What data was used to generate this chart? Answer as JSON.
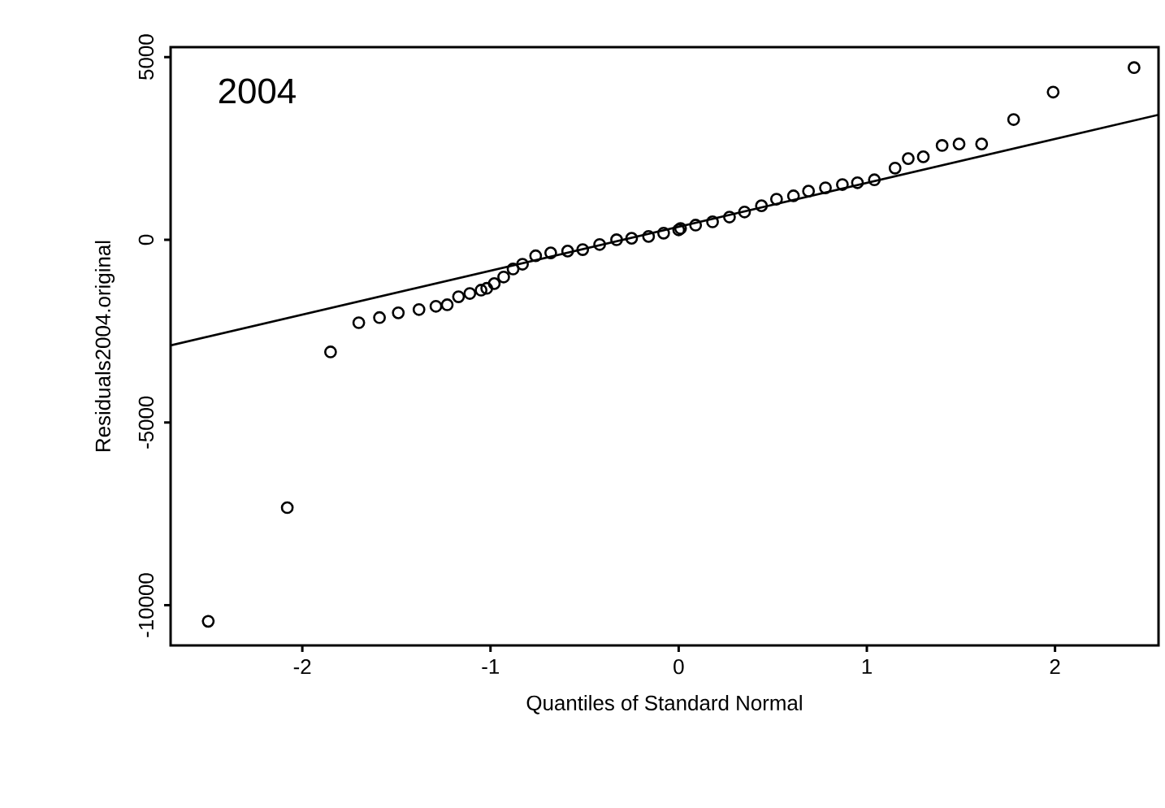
{
  "chart_data": {
    "type": "scatter",
    "xlabel": "Quantiles of Standard Normal",
    "ylabel": "Residuals2004.original",
    "annotations": [
      "2004"
    ],
    "xlim": [
      -2.7,
      2.55
    ],
    "xticks": [
      -2,
      -1,
      0,
      1,
      2
    ],
    "ylim": [
      -11100,
      5270
    ],
    "yticks": [
      -10000,
      -5000,
      0,
      5000
    ],
    "grid": false,
    "series": [
      {
        "marker": "circle",
        "color": "#000000",
        "x": [
          -2.5,
          -2.08,
          -1.85,
          -1.7,
          -1.59,
          -1.49,
          -1.38,
          -1.29,
          -1.23,
          -1.17,
          -1.11,
          -1.05,
          -1.02,
          -0.98,
          -0.93,
          -0.88,
          -0.83,
          -0.76,
          -0.68,
          -0.59,
          -0.51,
          -0.42,
          -0.33,
          -0.25,
          -0.16,
          -0.08,
          0,
          0.01,
          0.09,
          0.18,
          0.27,
          0.35,
          0.44,
          0.52,
          0.61,
          0.69,
          0.78,
          0.87,
          0.95,
          1.04,
          1.15,
          1.22,
          1.3,
          1.4,
          1.49,
          1.61,
          1.78,
          1.99,
          2.42
        ],
        "values": [
          -10440,
          -7330,
          -3070,
          -2270,
          -2130,
          -2000,
          -1910,
          -1820,
          -1780,
          -1560,
          -1470,
          -1380,
          -1330,
          -1200,
          -1020,
          -800,
          -670,
          -440,
          -360,
          -310,
          -270,
          -130,
          0,
          40,
          90,
          180,
          270,
          310,
          400,
          490,
          620,
          760,
          930,
          1110,
          1200,
          1330,
          1420,
          1510,
          1560,
          1640,
          1960,
          2220,
          2270,
          2580,
          2620,
          2620,
          3290,
          4040,
          4710
        ]
      },
      {
        "type": "line",
        "marker": "none",
        "line_style": "solid",
        "color": "#000000",
        "x": [
          -2.7,
          2.55
        ],
        "values": [
          -2890,
          3420
        ]
      }
    ]
  }
}
